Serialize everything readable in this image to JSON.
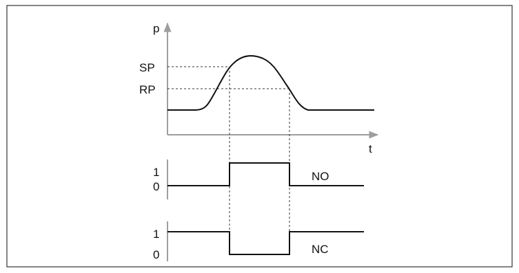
{
  "diagram": {
    "pressure_axis_label": "p",
    "time_axis_label": "t",
    "set_point_label": "SP",
    "reset_point_label": "RP",
    "no_output": {
      "label": "NO",
      "high_label": "1",
      "low_label": "0"
    },
    "nc_output": {
      "label": "NC",
      "high_label": "1",
      "low_label": "0"
    }
  },
  "colors": {
    "axis": "#9e9e9e",
    "signal": "#111111",
    "guide": "#333333"
  }
}
